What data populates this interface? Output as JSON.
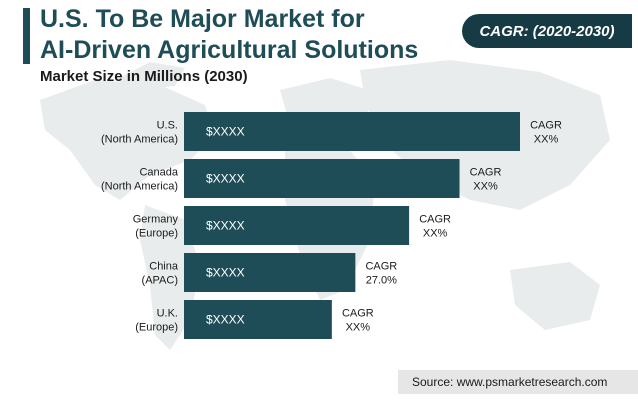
{
  "header": {
    "title_line1": "U.S. To Be Major Market for",
    "title_line2": "AI-Driven Agricultural Solutions",
    "subtitle": "Market Size in Millions (2030)"
  },
  "badge": {
    "label": "CAGR: (2020-2030)"
  },
  "colors": {
    "bar": "#1f4d57",
    "badge": "#173b44",
    "map": "#e9ecec"
  },
  "chart_data": {
    "type": "bar",
    "orientation": "horizontal",
    "title": "U.S. To Be Major Market for AI-Driven Agricultural Solutions",
    "subtitle": "Market Size in Millions (2030)",
    "categories": [
      [
        "U.S.",
        "(North America)"
      ],
      [
        "Canada",
        "(North America)"
      ],
      [
        "Germany",
        "(Europe)"
      ],
      [
        "China",
        "(APAC)"
      ],
      [
        "U.K.",
        "(Europe)"
      ]
    ],
    "value_labels": [
      "$XXXX",
      "$XXXX",
      "$XXXX",
      "$XXXX",
      "$XXXX"
    ],
    "cagr_labels": [
      [
        "CAGR",
        "XX%"
      ],
      [
        "CAGR",
        "XX%"
      ],
      [
        "CAGR",
        "XX%"
      ],
      [
        "CAGR",
        "27.0%"
      ],
      [
        "CAGR",
        "XX%"
      ]
    ],
    "relative_values": [
      1.0,
      0.82,
      0.67,
      0.51,
      0.44
    ],
    "grid": false,
    "legend": "none"
  },
  "footer": {
    "source": "Source: www.psmarketresearch.com"
  }
}
